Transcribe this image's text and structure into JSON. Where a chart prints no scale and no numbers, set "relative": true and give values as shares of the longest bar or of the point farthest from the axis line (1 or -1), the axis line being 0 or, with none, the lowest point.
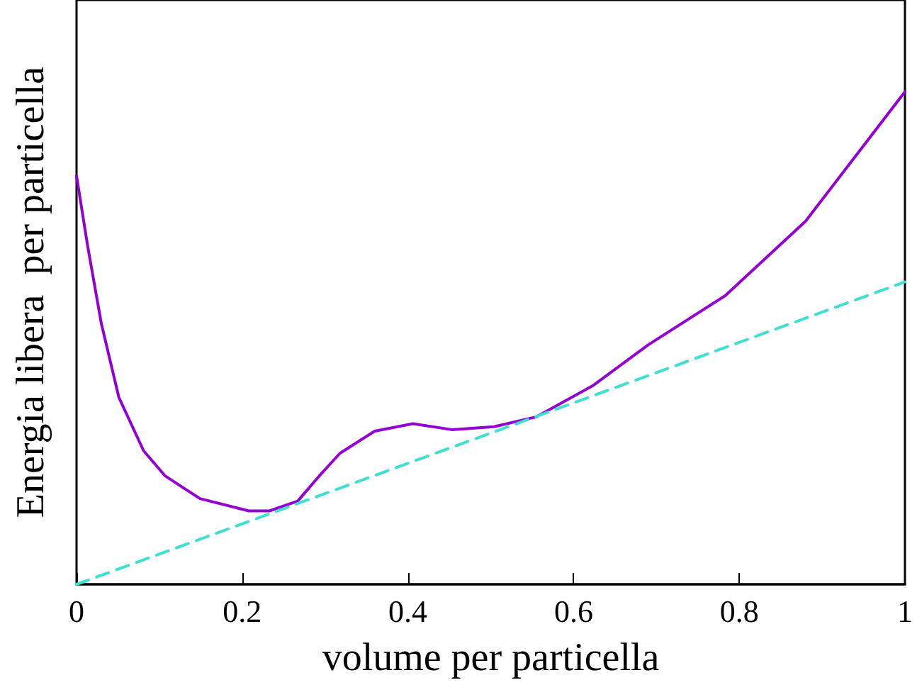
{
  "chart_data": {
    "type": "line",
    "xlabel": "volume per particella",
    "ylabel": "Energia libera  per particella",
    "relative": true,
    "xlim": [
      0,
      1
    ],
    "xticks": [
      0,
      0.2,
      0.4,
      0.6,
      0.8,
      1
    ],
    "grid": false,
    "marker": "none",
    "series": [
      {
        "color": "#9400d3",
        "line_style": "solid",
        "x": [
          0,
          0.0135,
          0.03,
          0.051,
          0.081,
          0.107,
          0.149,
          0.208,
          0.233,
          0.267,
          0.293,
          0.318,
          0.36,
          0.406,
          0.453,
          0.504,
          0.555,
          0.623,
          0.69,
          0.783,
          0.88,
          1
        ],
        "values": [
          0.829,
          0.686,
          0.529,
          0.38,
          0.271,
          0.22,
          0.174,
          0.149,
          0.149,
          0.169,
          0.22,
          0.266,
          0.311,
          0.326,
          0.314,
          0.32,
          0.34,
          0.403,
          0.486,
          0.586,
          0.737,
          1
        ]
      },
      {
        "color": "#40e0d0",
        "line_style": "dashed",
        "x": [
          0,
          1
        ],
        "values": [
          0,
          0.614
        ]
      }
    ]
  }
}
